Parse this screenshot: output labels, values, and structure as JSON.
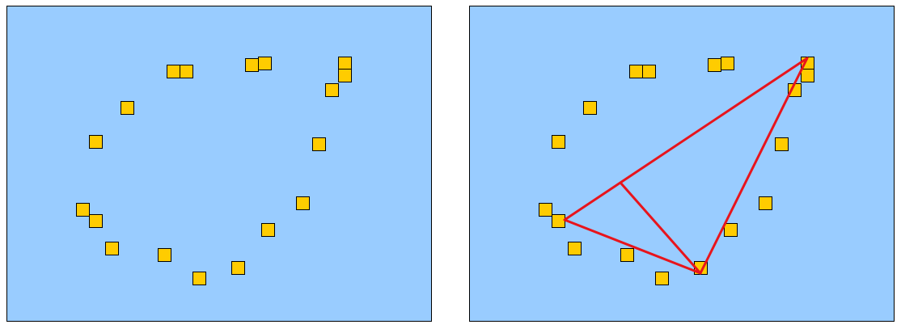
{
  "colors": {
    "panel_fill": "#99ccff",
    "panel_border": "#000000",
    "marker_fill": "#ffcc00",
    "marker_border": "#000000",
    "triangle_line": "#e8141c"
  },
  "panels": [
    {
      "name": "left-panel",
      "has_triangle": false
    },
    {
      "name": "right-panel",
      "has_triangle": true
    }
  ]
}
